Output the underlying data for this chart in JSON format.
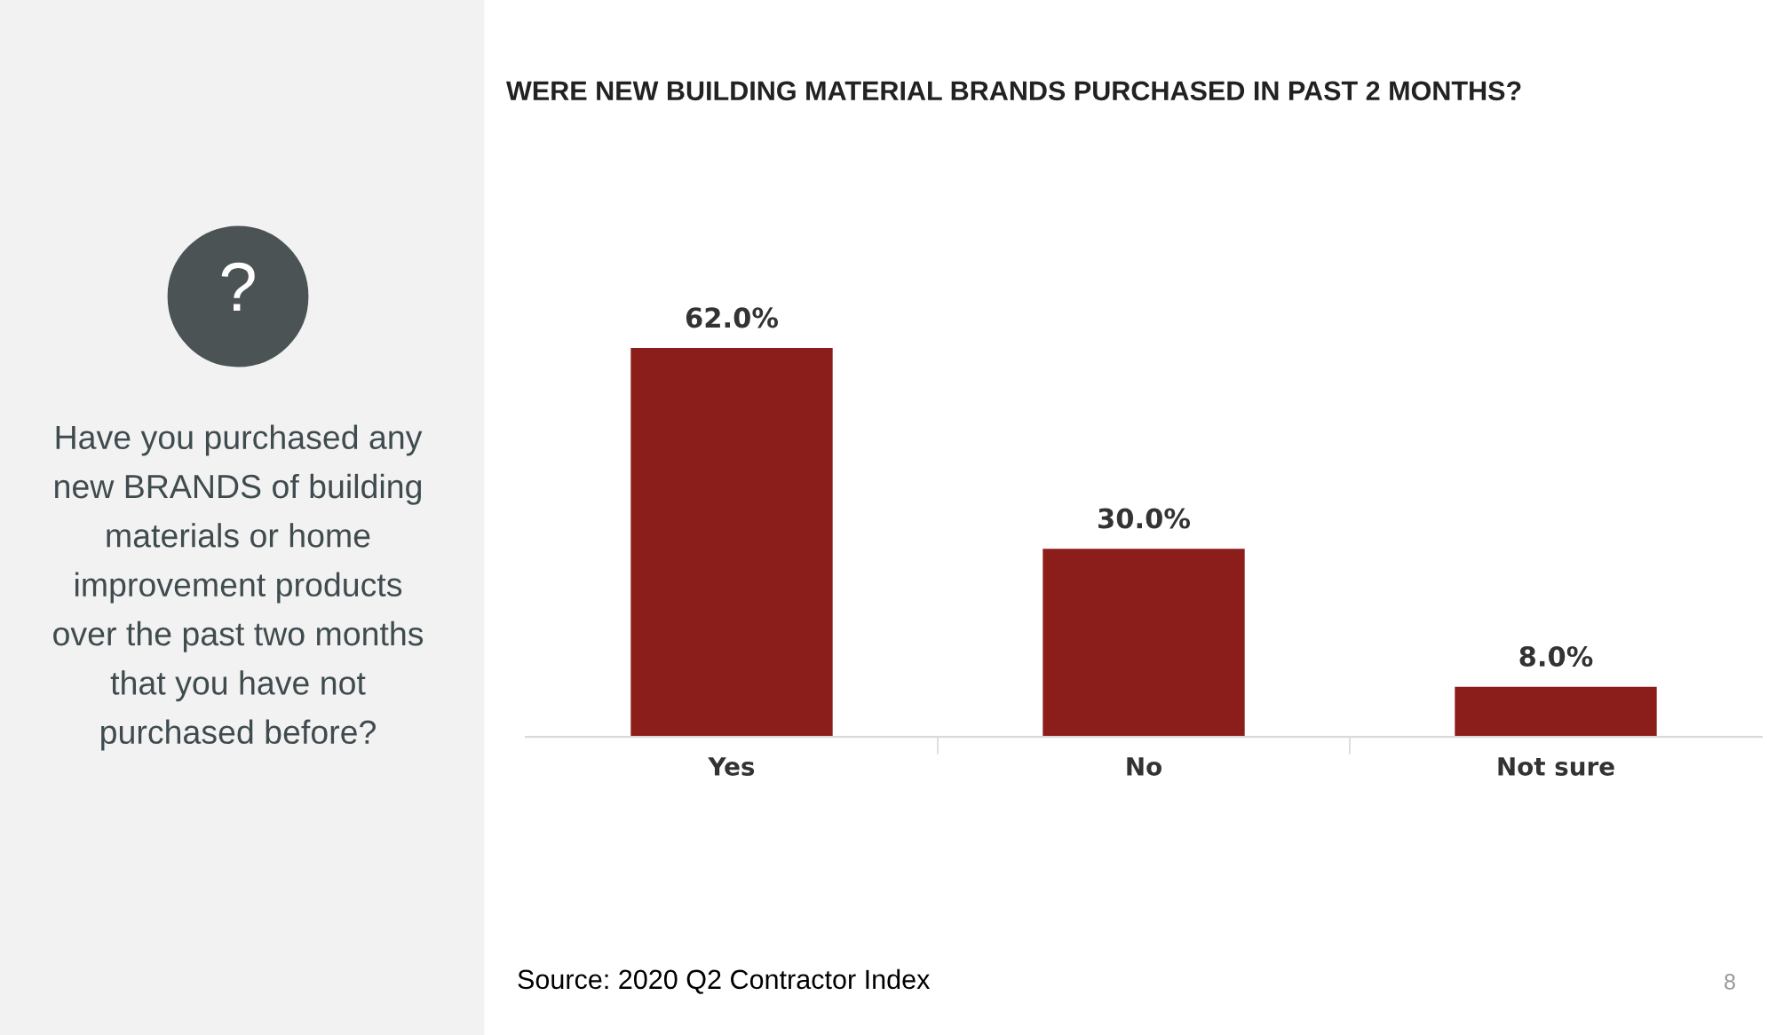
{
  "chart_data": {
    "type": "bar",
    "title": "WERE NEW BUILDING MATERIAL BRANDS PURCHASED IN PAST 2 MONTHS?",
    "categories": [
      "Yes",
      "No",
      "Not sure"
    ],
    "values": [
      62.0,
      30.0,
      8.0
    ],
    "value_labels": [
      "62.0%",
      "30.0%",
      "8.0%"
    ],
    "color": "#8b1e1a",
    "annotations": [
      "?",
      "Have you purchased any\nnew BRANDS of building\nmaterials or home\nimprovement products\nover the past two months\nthat you have not\npurchased before?",
      "Source: 2020 Q2 Contractor Index",
      "8"
    ]
  }
}
